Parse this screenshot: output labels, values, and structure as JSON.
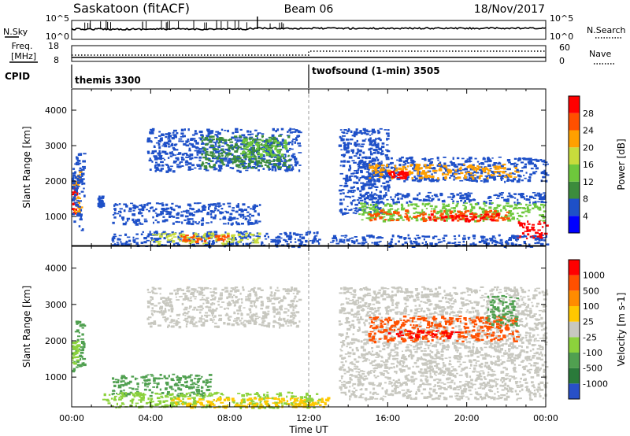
{
  "header": {
    "radar": "Saskatoon (fitACF)",
    "beam": "Beam 06",
    "date": "18/Nov/2017"
  },
  "params": {
    "nsky_label": "N.Sky",
    "nsky_ticks": [
      "10^5",
      "10^0"
    ],
    "nsearch_label": "N.Search",
    "nsearch_ticks": [
      "10^5",
      "10^0"
    ],
    "freq_label": "Freq.",
    "freq_unit": "[MHz]",
    "freq_ticks": [
      "18",
      "8"
    ],
    "nave_label": "Nave",
    "nave_ticks": [
      "60",
      "0"
    ],
    "cpid_label": "CPID",
    "cpid_modes": [
      {
        "name": "themis 3300",
        "start_hour": 0
      },
      {
        "name": "twofsound (1-min) 3505",
        "start_hour": 12
      }
    ]
  },
  "chart_data": [
    {
      "type": "heatmap",
      "name": "power-panel",
      "ylabel": "Slant Range [km]",
      "ylim": [
        180,
        4600
      ],
      "yticks": [
        1000,
        2000,
        3000,
        4000
      ],
      "xlim": [
        0,
        24
      ],
      "xticks": [
        "00:00",
        "04:00",
        "08:00",
        "12:00",
        "16:00",
        "20:00",
        "00:00"
      ],
      "colorbar": {
        "label": "Power [dB]",
        "ticks": [
          "4",
          "8",
          "12",
          "16",
          "20",
          "24",
          "28"
        ],
        "colors": [
          "#0000ff",
          "#1e50c8",
          "#3c8c3c",
          "#6ec83c",
          "#c8dc3c",
          "#ffa000",
          "#ff5000",
          "#ff0000"
        ]
      },
      "regions": [
        {
          "t0": 0.0,
          "t1": 0.2,
          "r0": 1100,
          "r1": 2000,
          "c": 7
        },
        {
          "t0": 0.0,
          "t1": 0.4,
          "r0": 1100,
          "r1": 2300,
          "c": 5
        },
        {
          "t0": 0.0,
          "t1": 0.6,
          "r0": 600,
          "r1": 2800,
          "c": 1
        },
        {
          "t0": 1.3,
          "t1": 1.5,
          "r0": 1300,
          "r1": 1600,
          "c": 1
        },
        {
          "t0": 3.8,
          "t1": 11.5,
          "r0": 2300,
          "r1": 3500,
          "c": 1
        },
        {
          "t0": 6.5,
          "t1": 11.0,
          "r0": 2400,
          "r1": 3300,
          "c": 2
        },
        {
          "t0": 8.5,
          "t1": 10.8,
          "r0": 2700,
          "r1": 3200,
          "c": 3
        },
        {
          "t0": 2.0,
          "t1": 9.5,
          "r0": 800,
          "r1": 1400,
          "c": 1
        },
        {
          "t0": 2.0,
          "t1": 12.5,
          "r0": 180,
          "r1": 600,
          "c": 1
        },
        {
          "t0": 4.0,
          "t1": 9.5,
          "r0": 250,
          "r1": 550,
          "c": 4
        },
        {
          "t0": 5.5,
          "t1": 8.0,
          "r0": 300,
          "r1": 500,
          "c": 6
        },
        {
          "t0": 13.5,
          "t1": 16.0,
          "r0": 1100,
          "r1": 3500,
          "c": 1
        },
        {
          "t0": 14.5,
          "t1": 24.0,
          "r0": 2000,
          "r1": 2700,
          "c": 1
        },
        {
          "t0": 15.0,
          "t1": 22.5,
          "r0": 2100,
          "r1": 2500,
          "c": 5
        },
        {
          "t0": 16.0,
          "t1": 17.0,
          "r0": 2100,
          "r1": 2300,
          "c": 7
        },
        {
          "t0": 14.5,
          "t1": 24.0,
          "r0": 1400,
          "r1": 1700,
          "c": 1
        },
        {
          "t0": 14.5,
          "t1": 24.0,
          "r0": 900,
          "r1": 1400,
          "c": 3
        },
        {
          "t0": 15.0,
          "t1": 22.0,
          "r0": 900,
          "r1": 1200,
          "c": 6
        },
        {
          "t0": 18.0,
          "t1": 21.5,
          "r0": 900,
          "r1": 1100,
          "c": 7
        },
        {
          "t0": 22.5,
          "t1": 24.0,
          "r0": 400,
          "r1": 900,
          "c": 7
        },
        {
          "t0": 13.0,
          "t1": 24.0,
          "r0": 180,
          "r1": 500,
          "c": 1
        }
      ]
    },
    {
      "type": "heatmap",
      "name": "velocity-panel",
      "ylabel": "Slant Range [km]",
      "ylim": [
        180,
        4600
      ],
      "yticks": [
        1000,
        2000,
        3000,
        4000
      ],
      "xlim": [
        0,
        24
      ],
      "xticks": [
        "00:00",
        "04:00",
        "08:00",
        "12:00",
        "16:00",
        "20:00",
        "00:00"
      ],
      "xlabel": "Time UT",
      "colorbar": {
        "label": "Velocity [m s-1]",
        "ticks": [
          "1000",
          "500",
          "100",
          "25",
          "-25",
          "-100",
          "-500",
          "-1000"
        ],
        "colors": [
          "#2850c8",
          "#2a7a3a",
          "#50a050",
          "#8cd23c",
          "#c8c8c0",
          "#ffc800",
          "#ff8c00",
          "#ff5000",
          "#ff0000"
        ]
      },
      "regions": [
        {
          "t0": 3.8,
          "t1": 11.5,
          "r0": 2400,
          "r1": 3500,
          "c": 4
        },
        {
          "t0": 0.0,
          "t1": 0.6,
          "r0": 1200,
          "r1": 2600,
          "c": 2
        },
        {
          "t0": 0.0,
          "t1": 0.3,
          "r0": 1400,
          "r1": 2000,
          "c": 3
        },
        {
          "t0": 2.0,
          "t1": 7.0,
          "r0": 500,
          "r1": 1100,
          "c": 2
        },
        {
          "t0": 1.5,
          "t1": 12.5,
          "r0": 180,
          "r1": 600,
          "c": 3
        },
        {
          "t0": 5.0,
          "t1": 13.0,
          "r0": 180,
          "r1": 450,
          "c": 5
        },
        {
          "t0": 13.5,
          "t1": 24.0,
          "r0": 400,
          "r1": 3500,
          "c": 4
        },
        {
          "t0": 15.0,
          "t1": 22.5,
          "r0": 2000,
          "r1": 2700,
          "c": 7
        },
        {
          "t0": 16.0,
          "t1": 19.5,
          "r0": 2100,
          "r1": 2300,
          "c": 8
        },
        {
          "t0": 21.0,
          "t1": 22.5,
          "r0": 2400,
          "r1": 3300,
          "c": 2
        }
      ]
    }
  ]
}
